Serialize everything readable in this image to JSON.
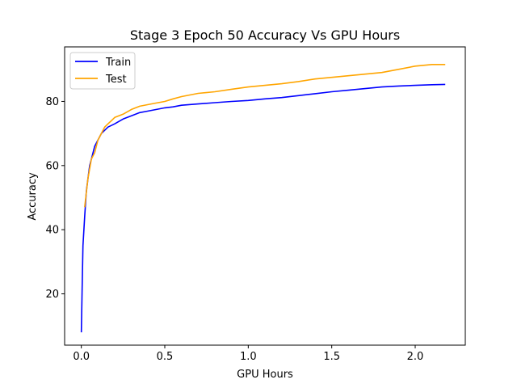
{
  "chart_data": {
    "type": "line",
    "title": "Stage 3 Epoch 50 Accuracy Vs GPU Hours",
    "xlabel": "GPU Hours",
    "ylabel": "Accuracy",
    "xlim": [
      -0.1,
      2.3
    ],
    "ylim": [
      4,
      97
    ],
    "xticks": [
      0.0,
      0.5,
      1.0,
      1.5,
      2.0
    ],
    "xtick_labels": [
      "0.0",
      "0.5",
      "1.0",
      "1.5",
      "2.0"
    ],
    "yticks": [
      20,
      40,
      60,
      80
    ],
    "ytick_labels": [
      "20",
      "40",
      "60",
      "80"
    ],
    "grid": false,
    "legend_position": "top-left",
    "series": [
      {
        "name": "Train",
        "color": "#0000ff",
        "x": [
          0.0,
          0.005,
          0.01,
          0.02,
          0.03,
          0.04,
          0.05,
          0.06,
          0.08,
          0.1,
          0.12,
          0.14,
          0.16,
          0.18,
          0.2,
          0.25,
          0.3,
          0.35,
          0.4,
          0.45,
          0.5,
          0.55,
          0.6,
          0.7,
          0.8,
          0.9,
          1.0,
          1.1,
          1.2,
          1.3,
          1.4,
          1.5,
          1.6,
          1.7,
          1.8,
          1.9,
          2.0,
          2.1,
          2.18
        ],
        "y": [
          8,
          22,
          35,
          44,
          52,
          56,
          60,
          62,
          66,
          68,
          70,
          71,
          72,
          72.5,
          73,
          74.5,
          75.5,
          76.5,
          77,
          77.5,
          78,
          78.3,
          78.8,
          79.2,
          79.6,
          80,
          80.3,
          80.8,
          81.2,
          81.8,
          82.4,
          83,
          83.5,
          84,
          84.5,
          84.8,
          85,
          85.2,
          85.3
        ]
      },
      {
        "name": "Test",
        "color": "#ffa500",
        "x": [
          0.02,
          0.04,
          0.06,
          0.08,
          0.1,
          0.12,
          0.14,
          0.16,
          0.18,
          0.2,
          0.25,
          0.3,
          0.35,
          0.4,
          0.45,
          0.5,
          0.55,
          0.6,
          0.7,
          0.8,
          0.9,
          1.0,
          1.1,
          1.2,
          1.3,
          1.4,
          1.5,
          1.6,
          1.7,
          1.8,
          1.9,
          2.0,
          2.1,
          2.18
        ],
        "y": [
          47,
          56,
          62,
          64,
          68,
          70,
          72,
          73,
          74,
          75,
          76,
          77.5,
          78.5,
          79,
          79.5,
          80,
          80.8,
          81.5,
          82.5,
          83,
          83.8,
          84.5,
          85,
          85.5,
          86.2,
          87,
          87.5,
          88,
          88.5,
          89,
          90,
          91,
          91.5,
          91.5
        ]
      }
    ]
  }
}
